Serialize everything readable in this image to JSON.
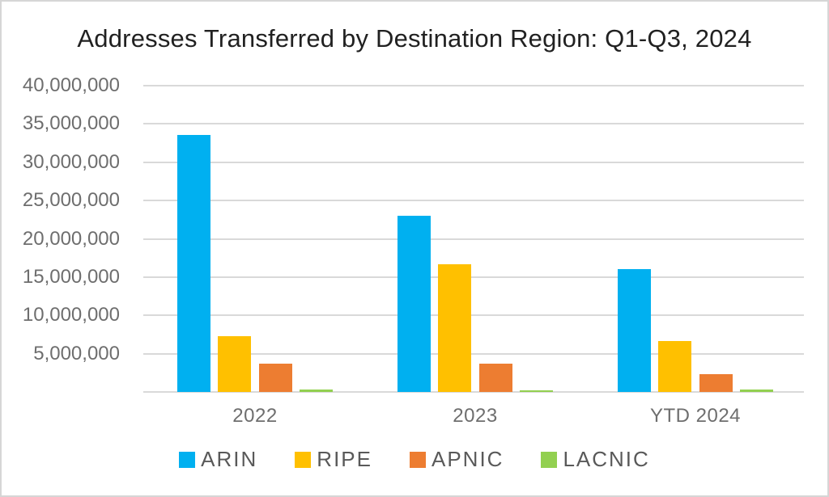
{
  "title": "Addresses Transferred by Destination Region: Q1-Q3, 2024",
  "chart_data": {
    "type": "bar",
    "title": "Addresses Transferred by Destination Region: Q1-Q3, 2024",
    "categories": [
      "2022",
      "2023",
      "YTD 2024"
    ],
    "series": [
      {
        "name": "ARIN",
        "color": "#00B0F0",
        "values": [
          33600000,
          23000000,
          16000000
        ]
      },
      {
        "name": "RIPE",
        "color": "#FFC000",
        "values": [
          7300000,
          16700000,
          6700000
        ]
      },
      {
        "name": "APNIC",
        "color": "#ED7D31",
        "values": [
          3700000,
          3700000,
          2300000
        ]
      },
      {
        "name": "LACNIC",
        "color": "#92D050",
        "values": [
          300000,
          200000,
          300000
        ]
      }
    ],
    "xlabel": "",
    "ylabel": "",
    "ylim": [
      0,
      40000000
    ],
    "ytick_step": 5000000,
    "ytick_labels_top_to_bottom": [
      "40,000,000",
      "35,000,000",
      "30,000,000",
      "25,000,000",
      "20,000,000",
      "15,000,000",
      "10,000,000",
      "5,000,000"
    ],
    "grid": true,
    "gridline_color": "#d9d9d9",
    "legend_position": "bottom",
    "legend_entries": [
      "ARIN",
      "RIPE",
      "APNIC",
      "LACNIC"
    ]
  },
  "colors": {
    "arin": "#00B0F0",
    "ripe": "#FFC000",
    "apnic": "#ED7D31",
    "lacnic": "#92D050",
    "title_text": "#212121",
    "axis_text": "#6e6e6e",
    "legend_text": "#595959",
    "gridline": "#d9d9d9",
    "border": "#d6d6d6"
  }
}
